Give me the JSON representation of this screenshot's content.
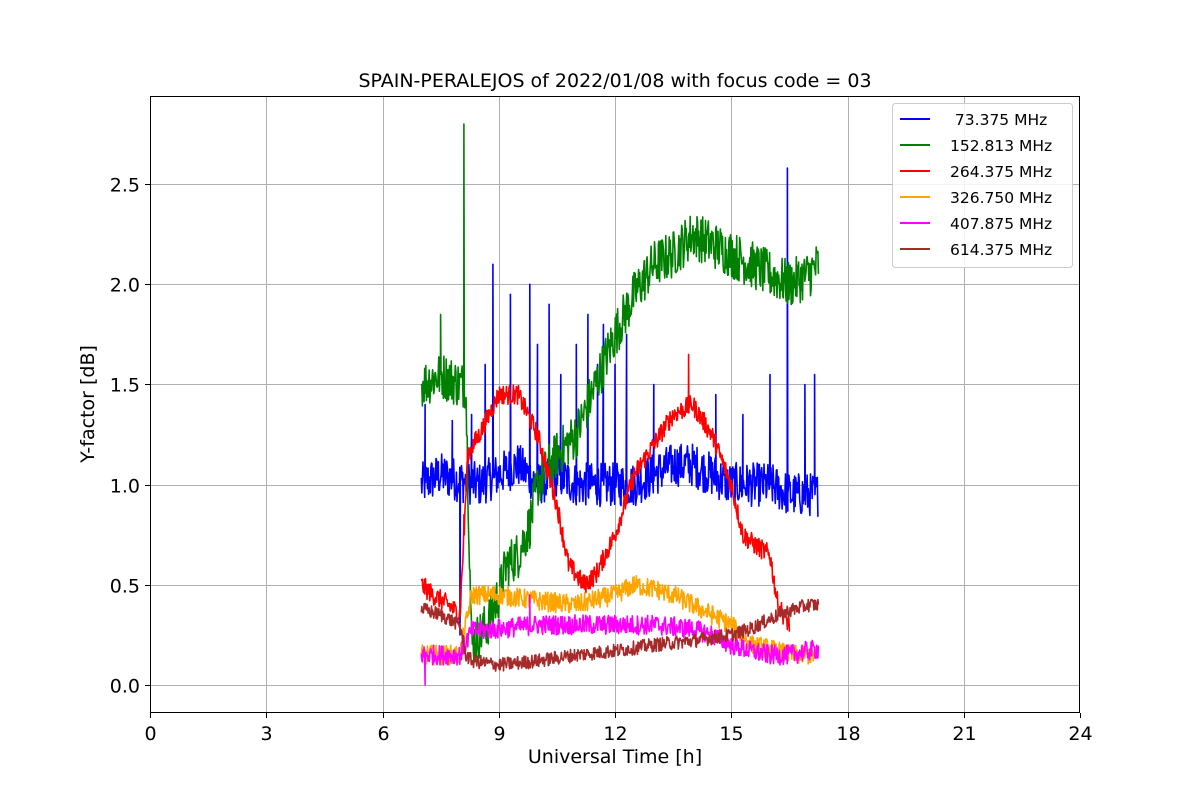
{
  "chart_data": {
    "type": "line",
    "title": "SPAIN-PERALEJOS of 2022/01/08 with focus code = 03",
    "xlabel": "Universal Time [h]",
    "ylabel": "Y-factor [dB]",
    "xlim": [
      0,
      24
    ],
    "ylim": [
      -0.14,
      2.94
    ],
    "xticks": [
      0,
      3,
      6,
      9,
      12,
      15,
      18,
      21,
      24
    ],
    "yticks": [
      0.0,
      0.5,
      1.0,
      1.5,
      2.0,
      2.5
    ],
    "xtick_labels": [
      "0",
      "3",
      "6",
      "9",
      "12",
      "15",
      "18",
      "21",
      "24"
    ],
    "ytick_labels": [
      "0.0",
      "0.5",
      "1.0",
      "1.5",
      "2.0",
      "2.5"
    ],
    "grid": true,
    "legend_position": "top-right",
    "series": [
      {
        "name": " 73.375 MHz",
        "color": "#0000ff",
        "noise": 0.11,
        "x": [
          7.0,
          7.5,
          8.0,
          8.5,
          9.0,
          9.5,
          10.0,
          10.5,
          11.0,
          11.5,
          12.0,
          12.5,
          13.0,
          13.5,
          14.0,
          14.5,
          15.0,
          15.5,
          16.0,
          16.5,
          17.0,
          17.25
        ],
        "y": [
          1.0,
          1.05,
          1.02,
          1.0,
          1.05,
          1.1,
          1.0,
          1.05,
          1.0,
          1.0,
          1.0,
          1.0,
          1.05,
          1.1,
          1.1,
          1.05,
          1.0,
          1.0,
          1.0,
          0.95,
          0.95,
          0.95
        ],
        "spikes": [
          [
            7.1,
            1.4
          ],
          [
            7.8,
            1.32
          ],
          [
            8.0,
            0.25
          ],
          [
            8.3,
            1.35
          ],
          [
            8.65,
            1.6
          ],
          [
            8.85,
            2.1
          ],
          [
            9.3,
            1.95
          ],
          [
            9.8,
            2.0
          ],
          [
            10.0,
            1.7
          ],
          [
            10.3,
            1.9
          ],
          [
            10.6,
            1.55
          ],
          [
            11.0,
            1.7
          ],
          [
            11.3,
            1.85
          ],
          [
            11.55,
            1.6
          ],
          [
            11.7,
            1.8
          ],
          [
            12.0,
            1.6
          ],
          [
            12.3,
            1.75
          ],
          [
            13.0,
            1.5
          ],
          [
            14.6,
            1.45
          ],
          [
            15.3,
            1.35
          ],
          [
            16.0,
            1.55
          ],
          [
            16.45,
            2.58
          ],
          [
            16.9,
            1.5
          ],
          [
            17.15,
            1.55
          ]
        ]
      },
      {
        "name": "152.813 MHz",
        "color": "#008000",
        "noise": 0.12,
        "x": [
          7.0,
          7.5,
          8.0,
          8.15,
          8.3,
          8.7,
          9.0,
          9.2,
          9.5,
          9.8,
          10.0,
          10.5,
          11.0,
          11.5,
          12.0,
          12.5,
          13.0,
          13.5,
          14.0,
          14.5,
          15.0,
          15.5,
          16.0,
          16.5,
          17.0,
          17.25
        ],
        "y": [
          1.5,
          1.55,
          1.5,
          1.5,
          0.2,
          0.3,
          0.45,
          0.6,
          0.65,
          0.8,
          1.0,
          1.15,
          1.25,
          1.5,
          1.75,
          1.95,
          2.1,
          2.15,
          2.25,
          2.2,
          2.15,
          2.1,
          2.05,
          2.0,
          2.05,
          2.1
        ],
        "spikes": [
          [
            8.1,
            2.8
          ],
          [
            7.5,
            1.85
          ]
        ]
      },
      {
        "name": "264.375 MHz",
        "color": "#ff0000",
        "noise": 0.05,
        "x": [
          7.0,
          7.3,
          7.7,
          8.0,
          8.2,
          8.5,
          9.0,
          9.5,
          10.0,
          10.5,
          10.8,
          11.2,
          11.5,
          12.0,
          12.5,
          13.0,
          13.5,
          14.0,
          14.5,
          15.0,
          15.3,
          15.6,
          16.0,
          16.2,
          16.5
        ],
        "y": [
          0.5,
          0.45,
          0.4,
          0.35,
          1.15,
          1.25,
          1.45,
          1.45,
          1.25,
          0.9,
          0.6,
          0.5,
          0.55,
          0.75,
          1.05,
          1.2,
          1.35,
          1.4,
          1.25,
          1.0,
          0.75,
          0.7,
          0.65,
          0.4,
          0.3
        ],
        "spikes": [
          [
            8.1,
            0.85
          ],
          [
            13.9,
            1.65
          ]
        ]
      },
      {
        "name": "326.750 MHz",
        "color": "#ffa500",
        "noise": 0.05,
        "x": [
          7.0,
          7.5,
          8.0,
          8.3,
          9.0,
          10.0,
          11.0,
          12.0,
          12.5,
          13.0,
          13.5,
          14.0,
          14.5,
          15.0,
          15.5,
          16.0,
          16.5,
          17.0,
          17.25
        ],
        "y": [
          0.15,
          0.15,
          0.15,
          0.45,
          0.45,
          0.42,
          0.4,
          0.45,
          0.5,
          0.48,
          0.45,
          0.4,
          0.35,
          0.3,
          0.2,
          0.18,
          0.15,
          0.15,
          0.15
        ],
        "spikes": []
      },
      {
        "name": "407.875 MHz",
        "color": "#ff00ff",
        "noise": 0.05,
        "x": [
          7.0,
          7.5,
          8.0,
          8.3,
          9.0,
          10.0,
          11.0,
          12.0,
          13.0,
          14.0,
          14.5,
          15.0,
          15.5,
          16.0,
          16.5,
          17.0,
          17.25
        ],
        "y": [
          0.15,
          0.15,
          0.15,
          0.27,
          0.28,
          0.3,
          0.3,
          0.3,
          0.3,
          0.28,
          0.25,
          0.2,
          0.17,
          0.15,
          0.15,
          0.17,
          0.18
        ],
        "spikes": [
          [
            9.8,
            0.45
          ],
          [
            7.1,
            0.0
          ]
        ]
      },
      {
        "name": "614.375 MHz",
        "color": "#a52a2a",
        "noise": 0.035,
        "x": [
          7.0,
          7.5,
          8.0,
          8.15,
          8.3,
          9.0,
          10.0,
          11.0,
          12.0,
          13.0,
          14.0,
          15.0,
          15.5,
          16.0,
          16.5,
          17.0,
          17.25
        ],
        "y": [
          0.38,
          0.35,
          0.3,
          0.15,
          0.12,
          0.1,
          0.12,
          0.15,
          0.17,
          0.2,
          0.22,
          0.25,
          0.28,
          0.33,
          0.37,
          0.4,
          0.4
        ],
        "spikes": []
      }
    ]
  }
}
